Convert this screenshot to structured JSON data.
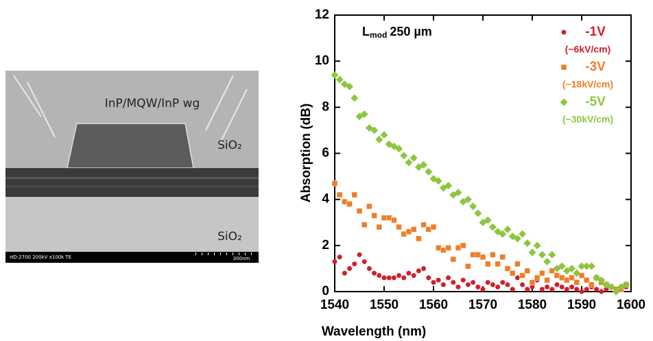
{
  "image": {
    "ridge_label": "InP/MQW/InP wg",
    "cladding_label": "SiO₂",
    "substrate_label": "SiO₂",
    "info": "HD-2700  200kV  x100k  TE",
    "scale": "300nm"
  },
  "chart_data": {
    "type": "scatter",
    "annotation": {
      "text": "L",
      "sub": "mod",
      "after": "250 µm"
    },
    "xlabel": "Wavelength (nm)",
    "ylabel": "Absorption (dB)",
    "xlim": [
      1540,
      1600
    ],
    "ylim": [
      0,
      12
    ],
    "xticks": [
      1540,
      1550,
      1560,
      1570,
      1580,
      1590,
      1600
    ],
    "yticks": [
      0,
      2,
      4,
      6,
      8,
      10,
      12
    ],
    "x": [
      1540,
      1541,
      1542,
      1543,
      1544,
      1545,
      1546,
      1547,
      1548,
      1549,
      1550,
      1551,
      1552,
      1553,
      1554,
      1555,
      1556,
      1557,
      1558,
      1559,
      1560,
      1561,
      1562,
      1563,
      1564,
      1565,
      1566,
      1567,
      1568,
      1569,
      1570,
      1571,
      1572,
      1573,
      1574,
      1575,
      1576,
      1577,
      1578,
      1579,
      1580,
      1581,
      1582,
      1583,
      1584,
      1585,
      1586,
      1587,
      1588,
      1589,
      1590,
      1591,
      1592,
      1593,
      1594,
      1595,
      1596,
      1597,
      1598,
      1599
    ],
    "series": [
      {
        "name": "-1V",
        "field": "(~6kV/cm)",
        "color": "#d0202a",
        "marker": "circle",
        "values": [
          1.3,
          1.5,
          0.8,
          1.0,
          1.2,
          1.6,
          1.3,
          1.0,
          0.8,
          0.7,
          0.6,
          0.6,
          0.6,
          0.7,
          0.6,
          0.8,
          0.7,
          0.9,
          1.0,
          0.6,
          0.4,
          0.5,
          0.3,
          0.6,
          0.4,
          0.2,
          0.5,
          0.3,
          0.4,
          0.2,
          0.1,
          0.4,
          0.3,
          0.2,
          0.4,
          0.3,
          0.1,
          0.6,
          0.3,
          0.1,
          0.2,
          0.5,
          0.1,
          0.2,
          0.1,
          0.3,
          0.2,
          0.1,
          0.2,
          0.1,
          0.0,
          0.1,
          0.2,
          0.1,
          0.0,
          0.1,
          0.2,
          0.0,
          0.1,
          0.2
        ]
      },
      {
        "name": "-3V",
        "field": "(~18kV/cm)",
        "color": "#f07d28",
        "marker": "square",
        "values": [
          4.7,
          4.2,
          3.9,
          3.8,
          4.2,
          3.5,
          2.9,
          3.7,
          3.3,
          2.8,
          3.2,
          3.2,
          3.1,
          2.8,
          2.5,
          2.6,
          2.7,
          2.3,
          2.9,
          2.7,
          2.8,
          1.9,
          1.8,
          1.9,
          1.4,
          1.9,
          2.0,
          1.1,
          1.6,
          1.6,
          1.5,
          1.2,
          1.6,
          1.2,
          1.5,
          1.0,
          0.8,
          1.2,
          0.7,
          0.9,
          0.4,
          0.6,
          0.8,
          0.5,
          0.9,
          0.7,
          0.6,
          0.5,
          0.6,
          0.4,
          0.7,
          0.5,
          0.3,
          0.6,
          0.4,
          0.3,
          0.2,
          0.1,
          0.1,
          0.3
        ]
      },
      {
        "name": "-5V",
        "field": "(~30kV/cm)",
        "color": "#8dc63f",
        "marker": "diamond",
        "values": [
          9.4,
          9.2,
          9.0,
          8.9,
          8.4,
          7.6,
          7.7,
          7.1,
          7.0,
          6.6,
          6.8,
          6.4,
          6.3,
          6.2,
          5.9,
          5.6,
          5.8,
          5.4,
          5.5,
          5.2,
          4.9,
          4.8,
          4.5,
          4.6,
          4.2,
          4.3,
          3.9,
          4.0,
          3.7,
          3.4,
          3.0,
          3.1,
          2.8,
          2.6,
          2.5,
          2.7,
          2.4,
          2.3,
          2.5,
          2.1,
          1.7,
          2.0,
          1.6,
          1.3,
          1.6,
          1.0,
          1.1,
          0.9,
          1.0,
          0.8,
          1.1,
          1.1,
          1.1,
          0.6,
          0.5,
          0.3,
          0.2,
          0.0,
          0.2,
          0.3
        ]
      }
    ]
  }
}
